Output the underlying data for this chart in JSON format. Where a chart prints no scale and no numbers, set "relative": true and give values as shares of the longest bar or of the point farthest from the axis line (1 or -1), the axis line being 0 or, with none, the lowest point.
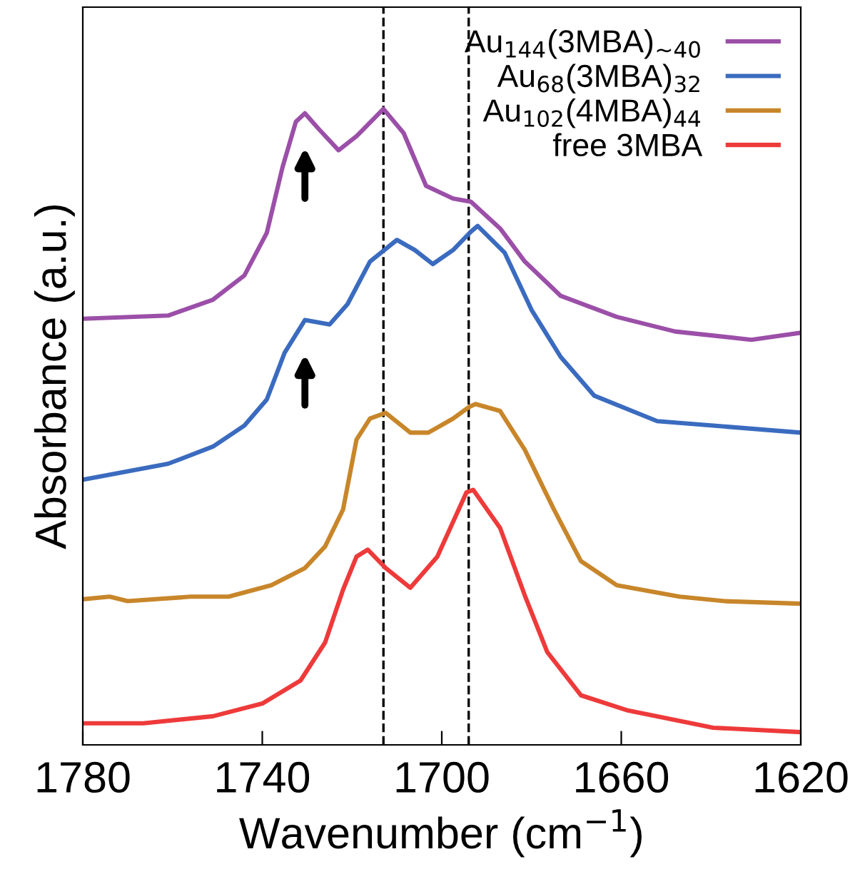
{
  "chart_data": {
    "type": "line",
    "relative": true,
    "xlabel": "Wavenumber (cm$^{−1}$)",
    "ylabel": "Absorbance (a.u.)",
    "xlim": [
      1780,
      1620
    ],
    "xticks": [
      1780,
      1740,
      1700,
      1660,
      1620
    ],
    "tick_labels": "x",
    "grid": false,
    "legend": "top right",
    "marker": "none",
    "line_style": "solid",
    "ref_lines": [
      {
        "axis": "x",
        "value": 1713,
        "color": "#000000",
        "line_style": "dashed"
      },
      {
        "axis": "x",
        "value": 1694,
        "color": "#000000",
        "line_style": "dashed"
      }
    ],
    "series": [
      {
        "name": "Au$_{144}$(3MBA)$_{∼40}$",
        "color": "#9b4fa8",
        "x": [
          1780,
          1761,
          1751,
          1744,
          1739,
          1735.5,
          1732.5,
          1730.5,
          1727.5,
          1723,
          1719,
          1713,
          1708.5,
          1703.5,
          1697.5,
          1693.5,
          1687,
          1681.5,
          1673.5,
          1661,
          1648,
          1631,
          1620
        ],
        "values": [
          0.67,
          0.675,
          0.7,
          0.738,
          0.805,
          0.908,
          0.98,
          0.993,
          0.969,
          0.935,
          0.957,
          1,
          0.962,
          0.879,
          0.859,
          0.854,
          0.812,
          0.76,
          0.706,
          0.673,
          0.65,
          0.637,
          0.648
        ]
      },
      {
        "name": "Au$_{68}$(3MBA)$_{32}$",
        "color": "#3a6bbf",
        "x": [
          1780,
          1761,
          1751,
          1744,
          1739,
          1735,
          1730.5,
          1725,
          1721,
          1716,
          1710,
          1706,
          1702,
          1697.5,
          1693.5,
          1692,
          1686,
          1680,
          1673.5,
          1666,
          1652,
          1639.5,
          1620
        ],
        "values": [
          0.417,
          0.442,
          0.469,
          0.502,
          0.543,
          0.617,
          0.668,
          0.661,
          0.693,
          0.76,
          0.794,
          0.778,
          0.756,
          0.778,
          0.807,
          0.816,
          0.774,
          0.684,
          0.61,
          0.549,
          0.509,
          0.502,
          0.491
        ]
      },
      {
        "name": "Au$_{102}$(4MBA)$_{44}$",
        "color": "#c8862a",
        "x": [
          1780,
          1774,
          1770,
          1756,
          1747.5,
          1738,
          1730.5,
          1726,
          1722,
          1719,
          1716,
          1712.5,
          1707,
          1703,
          1697.5,
          1694,
          1692.5,
          1687,
          1681.5,
          1675,
          1669,
          1661,
          1647,
          1637,
          1620
        ],
        "values": [
          0.229,
          0.233,
          0.226,
          0.233,
          0.233,
          0.251,
          0.278,
          0.312,
          0.37,
          0.48,
          0.513,
          0.522,
          0.491,
          0.491,
          0.513,
          0.531,
          0.536,
          0.525,
          0.464,
          0.37,
          0.289,
          0.251,
          0.233,
          0.226,
          0.222
        ]
      },
      {
        "name": "free 3MBA",
        "color": "#ee3a3a",
        "x": [
          1780,
          1766.5,
          1751,
          1740,
          1731.5,
          1726,
          1722,
          1719,
          1716.5,
          1712.5,
          1707,
          1701,
          1694.5,
          1693,
          1687,
          1681.5,
          1676.5,
          1669,
          1658.5,
          1639.5,
          1620
        ],
        "values": [
          0.034,
          0.034,
          0.045,
          0.065,
          0.101,
          0.161,
          0.244,
          0.296,
          0.307,
          0.278,
          0.247,
          0.296,
          0.397,
          0.401,
          0.341,
          0.235,
          0.146,
          0.078,
          0.054,
          0.027,
          0.02
        ]
      }
    ]
  }
}
